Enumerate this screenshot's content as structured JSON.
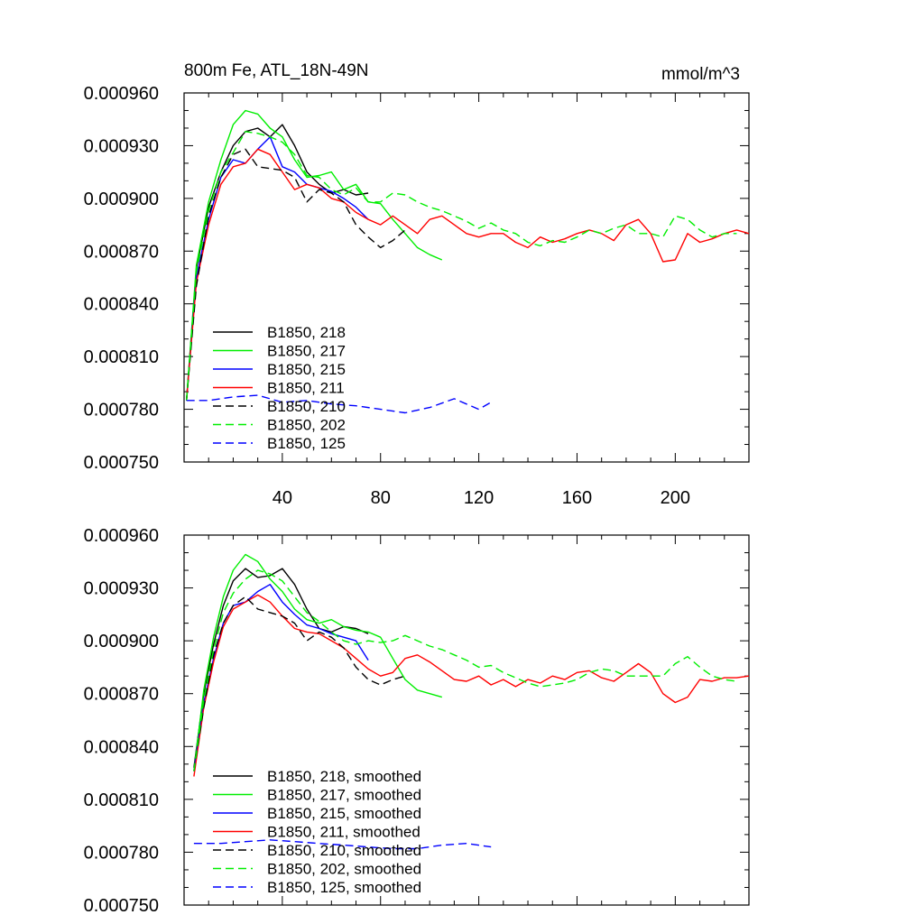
{
  "title": "800m Fe, ATL_18N-49N",
  "units": "mmol/m^3",
  "chart_data": [
    {
      "type": "line",
      "panel": "top",
      "title": "800m Fe, ATL_18N-49N",
      "units": "mmol/m^3",
      "xlim": [
        0,
        230
      ],
      "ylim": [
        0.00075,
        0.00096
      ],
      "xticks": [
        "40",
        "80",
        "120",
        "160",
        "200"
      ],
      "yticks": [
        "0.000960",
        "0.000930",
        "0.000900",
        "0.000870",
        "0.000840",
        "0.000810",
        "0.000780",
        "0.000750"
      ],
      "legend_position": "lower-left",
      "series": [
        {
          "name": "B1850, 218",
          "color": "#000000",
          "dash": "solid",
          "x": [
            1,
            5,
            10,
            15,
            20,
            25,
            30,
            35,
            40,
            45,
            50,
            55,
            60,
            65,
            70,
            75
          ],
          "y": [
            0.000785,
            0.00086,
            0.000895,
            0.000915,
            0.00093,
            0.000938,
            0.00094,
            0.000935,
            0.000942,
            0.00093,
            0.000915,
            0.000908,
            0.000903,
            0.000905,
            0.000902,
            0.000903
          ]
        },
        {
          "name": "B1850, 217",
          "color": "#00ee00",
          "dash": "solid",
          "x": [
            1,
            5,
            10,
            15,
            20,
            25,
            30,
            35,
            40,
            45,
            50,
            55,
            60,
            65,
            70,
            75,
            80,
            85,
            90,
            95,
            100,
            105
          ],
          "y": [
            0.000785,
            0.000862,
            0.000898,
            0.000922,
            0.000942,
            0.00095,
            0.000948,
            0.00094,
            0.000935,
            0.000922,
            0.000912,
            0.000913,
            0.000915,
            0.000905,
            0.000908,
            0.000898,
            0.000897,
            0.000888,
            0.00088,
            0.000872,
            0.000868,
            0.000865
          ]
        },
        {
          "name": "B1850, 215",
          "color": "#0000ff",
          "dash": "solid",
          "x": [
            1,
            5,
            10,
            15,
            20,
            25,
            30,
            35,
            40,
            45,
            50,
            55,
            60,
            65,
            70,
            75
          ],
          "y": [
            0.000785,
            0.000855,
            0.000888,
            0.000912,
            0.000922,
            0.00092,
            0.000928,
            0.000935,
            0.000918,
            0.000915,
            0.000908,
            0.000906,
            0.000904,
            0.0009,
            0.000895,
            0.000888
          ]
        },
        {
          "name": "B1850, 211",
          "color": "#ff0000",
          "dash": "solid",
          "x": [
            1,
            5,
            10,
            15,
            20,
            25,
            30,
            35,
            40,
            45,
            50,
            55,
            60,
            65,
            70,
            75,
            80,
            85,
            90,
            95,
            100,
            105,
            110,
            115,
            120,
            125,
            130,
            135,
            140,
            145,
            150,
            155,
            160,
            165,
            170,
            175,
            180,
            185,
            190,
            195,
            200,
            205,
            210,
            215,
            220,
            225,
            230
          ],
          "y": [
            0.000785,
            0.000852,
            0.000885,
            0.000908,
            0.000918,
            0.00092,
            0.000928,
            0.000925,
            0.000915,
            0.000905,
            0.000908,
            0.000906,
            0.0009,
            0.000898,
            0.000892,
            0.000888,
            0.000885,
            0.00089,
            0.000885,
            0.00088,
            0.000888,
            0.00089,
            0.000885,
            0.00088,
            0.000878,
            0.00088,
            0.00088,
            0.000875,
            0.000872,
            0.000878,
            0.000875,
            0.000877,
            0.00088,
            0.000882,
            0.00088,
            0.000876,
            0.000885,
            0.000888,
            0.00088,
            0.000864,
            0.000865,
            0.00088,
            0.000875,
            0.000877,
            0.00088,
            0.000882,
            0.00088
          ]
        },
        {
          "name": "B1850, 210",
          "color": "#000000",
          "dash": "dashed",
          "x": [
            1,
            5,
            10,
            15,
            20,
            25,
            30,
            35,
            40,
            45,
            50,
            55,
            60,
            65,
            70,
            75,
            80,
            85,
            90
          ],
          "y": [
            0.000785,
            0.00085,
            0.00089,
            0.000912,
            0.000925,
            0.000928,
            0.000918,
            0.000917,
            0.000916,
            0.000912,
            0.000898,
            0.000905,
            0.000903,
            0.000898,
            0.000885,
            0.000878,
            0.000872,
            0.000876,
            0.000882
          ]
        },
        {
          "name": "B1850, 202",
          "color": "#00ee00",
          "dash": "dashed",
          "x": [
            1,
            5,
            10,
            15,
            20,
            25,
            30,
            35,
            40,
            45,
            50,
            55,
            60,
            65,
            70,
            75,
            80,
            85,
            90,
            95,
            100,
            105,
            110,
            115,
            120,
            125,
            130,
            135,
            140,
            145,
            150,
            155,
            160,
            165,
            170,
            175,
            180,
            185,
            190,
            195,
            200,
            205,
            210,
            215,
            220,
            225
          ],
          "y": [
            0.000785,
            0.000858,
            0.000893,
            0.000915,
            0.000926,
            0.000938,
            0.000937,
            0.000935,
            0.000932,
            0.000925,
            0.000913,
            0.000912,
            0.000905,
            0.000902,
            0.000906,
            0.000898,
            0.000898,
            0.000903,
            0.000902,
            0.000898,
            0.000895,
            0.000893,
            0.00089,
            0.000887,
            0.000883,
            0.000886,
            0.000882,
            0.00088,
            0.000875,
            0.000873,
            0.000876,
            0.000875,
            0.000878,
            0.000882,
            0.00088,
            0.000883,
            0.000885,
            0.00088,
            0.00088,
            0.000878,
            0.00089,
            0.000888,
            0.000882,
            0.000878,
            0.00088,
            0.00088
          ]
        },
        {
          "name": "B1850, 125",
          "color": "#0000ff",
          "dash": "dashed",
          "x": [
            1,
            10,
            20,
            30,
            40,
            50,
            60,
            70,
            80,
            90,
            100,
            110,
            120,
            125
          ],
          "y": [
            0.000785,
            0.000785,
            0.000787,
            0.000788,
            0.000784,
            0.000785,
            0.000783,
            0.000782,
            0.00078,
            0.000778,
            0.000781,
            0.000786,
            0.00078,
            0.000784
          ]
        }
      ]
    },
    {
      "type": "line",
      "panel": "bottom",
      "xlim": [
        0,
        230
      ],
      "ylim": [
        0.00075,
        0.00096
      ],
      "xticks": [],
      "yticks": [
        "0.000960",
        "0.000930",
        "0.000900",
        "0.000870",
        "0.000840",
        "0.000810",
        "0.000780",
        "0.000750"
      ],
      "legend_position": "lower-left",
      "series": [
        {
          "name": "B1850, 218, smoothed",
          "color": "#000000",
          "dash": "solid",
          "x": [
            4,
            8,
            12,
            16,
            20,
            25,
            30,
            35,
            40,
            45,
            50,
            55,
            60,
            65,
            70,
            75
          ],
          "y": [
            0.000828,
            0.00087,
            0.000898,
            0.00092,
            0.000934,
            0.000941,
            0.000936,
            0.000937,
            0.000941,
            0.000932,
            0.000918,
            0.000907,
            0.000905,
            0.000908,
            0.000907,
            0.000904
          ]
        },
        {
          "name": "B1850, 217, smoothed",
          "color": "#00ee00",
          "dash": "solid",
          "x": [
            4,
            8,
            12,
            16,
            20,
            25,
            30,
            35,
            40,
            45,
            50,
            55,
            60,
            65,
            70,
            75,
            80,
            85,
            90,
            95,
            100,
            105
          ],
          "y": [
            0.000826,
            0.000872,
            0.000902,
            0.000925,
            0.00094,
            0.000949,
            0.000945,
            0.000935,
            0.000928,
            0.000918,
            0.000912,
            0.00091,
            0.000912,
            0.000908,
            0.000906,
            0.000905,
            0.000902,
            0.00089,
            0.000878,
            0.000872,
            0.00087,
            0.000868
          ]
        },
        {
          "name": "B1850, 215, smoothed",
          "color": "#0000ff",
          "dash": "solid",
          "x": [
            4,
            8,
            12,
            16,
            20,
            25,
            30,
            35,
            40,
            45,
            50,
            55,
            60,
            65,
            70,
            75
          ],
          "y": [
            0.000826,
            0.000865,
            0.00089,
            0.00091,
            0.00092,
            0.000922,
            0.000928,
            0.000932,
            0.000922,
            0.000915,
            0.000909,
            0.000907,
            0.000904,
            0.000902,
            0.0009,
            0.000889
          ]
        },
        {
          "name": "B1850, 211, smoothed",
          "color": "#ff0000",
          "dash": "solid",
          "x": [
            4,
            8,
            12,
            16,
            20,
            25,
            30,
            35,
            40,
            45,
            50,
            55,
            60,
            65,
            70,
            75,
            80,
            85,
            90,
            95,
            100,
            105,
            110,
            115,
            120,
            125,
            130,
            135,
            140,
            145,
            150,
            155,
            160,
            165,
            170,
            175,
            180,
            185,
            190,
            195,
            200,
            205,
            210,
            215,
            220,
            225,
            230
          ],
          "y": [
            0.000823,
            0.000862,
            0.000888,
            0.000908,
            0.000918,
            0.000922,
            0.000926,
            0.000922,
            0.000914,
            0.000907,
            0.000905,
            0.000904,
            0.0009,
            0.000896,
            0.00089,
            0.000884,
            0.00088,
            0.000882,
            0.00089,
            0.000892,
            0.000888,
            0.000883,
            0.000878,
            0.000877,
            0.00088,
            0.000875,
            0.000878,
            0.000874,
            0.000878,
            0.000876,
            0.00088,
            0.000878,
            0.000882,
            0.000883,
            0.000879,
            0.000877,
            0.000882,
            0.000887,
            0.000882,
            0.00087,
            0.000865,
            0.000868,
            0.000878,
            0.000877,
            0.000879,
            0.000879,
            0.00088
          ]
        },
        {
          "name": "B1850, 210, smoothed",
          "color": "#000000",
          "dash": "dashed",
          "x": [
            4,
            8,
            12,
            16,
            20,
            25,
            30,
            35,
            40,
            45,
            50,
            55,
            60,
            65,
            70,
            75,
            80,
            85,
            90
          ],
          "y": [
            0.000826,
            0.000862,
            0.000892,
            0.00091,
            0.00092,
            0.000925,
            0.000918,
            0.000916,
            0.000914,
            0.00091,
            0.0009,
            0.000905,
            0.000902,
            0.000896,
            0.000885,
            0.000878,
            0.000875,
            0.000878,
            0.00088
          ]
        },
        {
          "name": "B1850, 202, smoothed",
          "color": "#00ee00",
          "dash": "dashed",
          "x": [
            4,
            8,
            12,
            16,
            20,
            25,
            30,
            35,
            40,
            45,
            50,
            55,
            60,
            65,
            70,
            75,
            80,
            85,
            90,
            95,
            100,
            105,
            110,
            115,
            120,
            125,
            130,
            135,
            140,
            145,
            150,
            155,
            160,
            165,
            170,
            175,
            180,
            185,
            190,
            195,
            200,
            205,
            210,
            215,
            220,
            225
          ],
          "y": [
            0.000826,
            0.000866,
            0.000895,
            0.000916,
            0.000927,
            0.000935,
            0.00094,
            0.000938,
            0.000934,
            0.000925,
            0.000916,
            0.000911,
            0.000905,
            0.0009,
            0.000898,
            0.0009,
            0.000899,
            0.0009,
            0.000903,
            0.0009,
            0.000897,
            0.000895,
            0.000892,
            0.000889,
            0.000885,
            0.000886,
            0.000882,
            0.000879,
            0.000876,
            0.000874,
            0.000875,
            0.000876,
            0.000878,
            0.000882,
            0.000884,
            0.000883,
            0.00088,
            0.00088,
            0.00088,
            0.00088,
            0.000887,
            0.000891,
            0.000885,
            0.00088,
            0.000878,
            0.000877
          ]
        },
        {
          "name": "B1850, 125, smoothed",
          "color": "#0000ff",
          "dash": "dashed",
          "x": [
            4,
            15,
            25,
            35,
            45,
            55,
            65,
            75,
            85,
            95,
            105,
            115,
            125
          ],
          "y": [
            0.000785,
            0.000785,
            0.000786,
            0.000787,
            0.000786,
            0.000785,
            0.000784,
            0.000783,
            0.000782,
            0.000782,
            0.000784,
            0.000785,
            0.000783
          ]
        }
      ]
    }
  ]
}
